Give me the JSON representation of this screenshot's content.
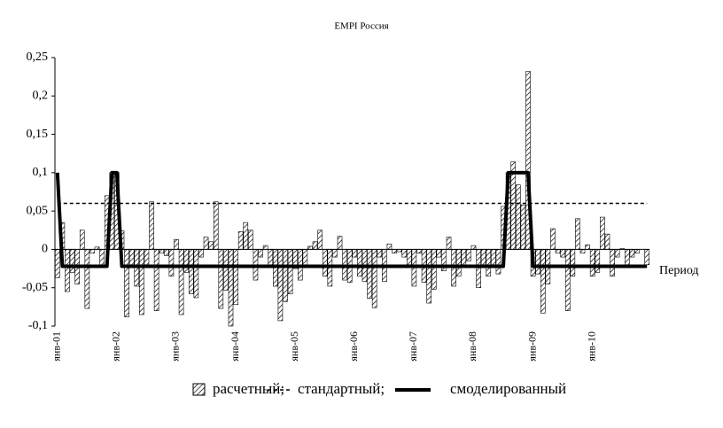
{
  "chart_data": {
    "type": "bar-line",
    "title": "EMPI Россия",
    "x_label": "Период",
    "categories": [
      "янв-01",
      null,
      null,
      null,
      null,
      null,
      null,
      null,
      null,
      null,
      null,
      null,
      "янв-02",
      null,
      null,
      null,
      null,
      null,
      null,
      null,
      null,
      null,
      null,
      null,
      "янв-03",
      null,
      null,
      null,
      null,
      null,
      null,
      null,
      null,
      null,
      null,
      null,
      "янв-04",
      null,
      null,
      null,
      null,
      null,
      null,
      null,
      null,
      null,
      null,
      null,
      "янв-05",
      null,
      null,
      null,
      null,
      null,
      null,
      null,
      null,
      null,
      null,
      null,
      "янв-06",
      null,
      null,
      null,
      null,
      null,
      null,
      null,
      null,
      null,
      null,
      null,
      "янв-07",
      null,
      null,
      null,
      null,
      null,
      null,
      null,
      null,
      null,
      null,
      null,
      "янв-08",
      null,
      null,
      null,
      null,
      null,
      null,
      null,
      null,
      null,
      null,
      null,
      "янв-09",
      null,
      null,
      null,
      null,
      null,
      null,
      null,
      null,
      null,
      null,
      null,
      "янв-10",
      null,
      null,
      null,
      null,
      null,
      null,
      null,
      null,
      null,
      null,
      null
    ],
    "series": [
      {
        "name": "расчетный;",
        "color": "#000000",
        "kind": "bar",
        "values": [
          -0.037,
          0.035,
          -0.055,
          -0.03,
          -0.045,
          0.025,
          -0.077,
          -0.005,
          0.003,
          -0.02,
          0.07,
          0.1,
          0.1,
          0.024,
          -0.088,
          -0.02,
          -0.048,
          -0.085,
          -0.02,
          0.062,
          -0.08,
          -0.005,
          -0.008,
          -0.035,
          0.013,
          -0.085,
          -0.03,
          -0.058,
          -0.063,
          -0.01,
          0.016,
          0.01,
          0.062,
          -0.077,
          -0.053,
          -0.1,
          -0.072,
          0.023,
          0.035,
          0.025,
          -0.04,
          -0.01,
          0.005,
          -0.02,
          -0.048,
          -0.093,
          -0.068,
          -0.058,
          -0.025,
          -0.04,
          -0.02,
          0.004,
          0.01,
          0.025,
          -0.035,
          -0.048,
          -0.01,
          0.017,
          -0.04,
          -0.043,
          -0.01,
          -0.035,
          -0.042,
          -0.064,
          -0.076,
          -0.01,
          -0.042,
          0.007,
          -0.005,
          -0.003,
          -0.01,
          -0.02,
          -0.048,
          -0.005,
          -0.043,
          -0.07,
          -0.052,
          -0.01,
          -0.028,
          0.016,
          -0.048,
          -0.035,
          -0.02,
          -0.015,
          0.005,
          -0.05,
          -0.02,
          -0.035,
          -0.02,
          -0.032,
          0.056,
          0.1,
          0.114,
          0.084,
          0.058,
          0.232,
          -0.035,
          -0.032,
          -0.083,
          -0.045,
          0.027,
          -0.005,
          -0.01,
          -0.08,
          -0.035,
          0.04,
          -0.005,
          0.006,
          -0.035,
          -0.03,
          0.042,
          0.02,
          -0.035,
          -0.01,
          0.001,
          -0.02,
          -0.01,
          -0.005,
          0.0,
          -0.02
        ]
      },
      {
        "name": "стандартный;",
        "color": "#000000",
        "kind": "dashed",
        "values": [
          0.06,
          0.06,
          0.06,
          0.06,
          0.06,
          0.06,
          0.06,
          0.06,
          0.06,
          0.06,
          0.06,
          0.06,
          0.06,
          0.06,
          0.06,
          0.06,
          0.06,
          0.06,
          0.06,
          0.06,
          0.06,
          0.06,
          0.06,
          0.06,
          0.06,
          0.06,
          0.06,
          0.06,
          0.06,
          0.06,
          0.06,
          0.06,
          0.06,
          0.06,
          0.06,
          0.06,
          0.06,
          0.06,
          0.06,
          0.06,
          0.06,
          0.06,
          0.06,
          0.06,
          0.06,
          0.06,
          0.06,
          0.06,
          0.06,
          0.06,
          0.06,
          0.06,
          0.06,
          0.06,
          0.06,
          0.06,
          0.06,
          0.06,
          0.06,
          0.06,
          0.06,
          0.06,
          0.06,
          0.06,
          0.06,
          0.06,
          0.06,
          0.06,
          0.06,
          0.06,
          0.06,
          0.06,
          0.06,
          0.06,
          0.06,
          0.06,
          0.06,
          0.06,
          0.06,
          0.06,
          0.06,
          0.06,
          0.06,
          0.06,
          0.06,
          0.06,
          0.06,
          0.06,
          0.06,
          0.06,
          0.06,
          0.06,
          0.06,
          0.06,
          0.06,
          0.06,
          0.06,
          0.06,
          0.06,
          0.06,
          0.06,
          0.06,
          0.06,
          0.06,
          0.06,
          0.06,
          0.06,
          0.06,
          0.06,
          0.06,
          0.06,
          0.06,
          0.06,
          0.06,
          0.06,
          0.06,
          0.06,
          0.06,
          0.06,
          0.06
        ]
      },
      {
        "name": "смоделированный",
        "color": "#000000",
        "kind": "thick",
        "values": [
          0.1,
          -0.022,
          -0.022,
          -0.022,
          -0.022,
          -0.022,
          -0.022,
          -0.022,
          -0.022,
          -0.022,
          -0.022,
          0.1,
          0.1,
          -0.022,
          -0.022,
          -0.022,
          -0.022,
          -0.022,
          -0.022,
          -0.022,
          -0.022,
          -0.022,
          -0.022,
          -0.022,
          -0.022,
          -0.022,
          -0.022,
          -0.022,
          -0.022,
          -0.022,
          -0.022,
          -0.022,
          -0.022,
          -0.022,
          -0.022,
          -0.022,
          -0.022,
          -0.022,
          -0.022,
          -0.022,
          -0.022,
          -0.022,
          -0.022,
          -0.022,
          -0.022,
          -0.022,
          -0.022,
          -0.022,
          -0.022,
          -0.022,
          -0.022,
          -0.022,
          -0.022,
          -0.022,
          -0.022,
          -0.022,
          -0.022,
          -0.022,
          -0.022,
          -0.022,
          -0.022,
          -0.022,
          -0.022,
          -0.022,
          -0.022,
          -0.022,
          -0.022,
          -0.022,
          -0.022,
          -0.022,
          -0.022,
          -0.022,
          -0.022,
          -0.022,
          -0.022,
          -0.022,
          -0.022,
          -0.022,
          -0.022,
          -0.022,
          -0.022,
          -0.022,
          -0.022,
          -0.022,
          -0.022,
          -0.022,
          -0.022,
          -0.022,
          -0.022,
          -0.022,
          -0.022,
          0.1,
          0.1,
          0.1,
          0.1,
          0.1,
          -0.022,
          -0.022,
          -0.022,
          -0.022,
          -0.022,
          -0.022,
          -0.022,
          -0.022,
          -0.022,
          -0.022,
          -0.022,
          -0.022,
          -0.022,
          -0.022,
          -0.022,
          -0.022,
          -0.022,
          -0.022,
          -0.022,
          -0.022,
          -0.022,
          -0.022,
          -0.022,
          -0.022
        ]
      }
    ],
    "ylim": [
      -0.1,
      0.25
    ],
    "yticks": [
      {
        "value": -0.1,
        "label": "-0,1"
      },
      {
        "value": -0.05,
        "label": "-0,05"
      },
      0,
      {
        "value": 0.05,
        "label": "0,05"
      },
      {
        "value": 0.1,
        "label": "0,1"
      },
      {
        "value": 0.15,
        "label": "0,15"
      },
      {
        "value": 0.2,
        "label": "0,2"
      },
      {
        "value": 0.25,
        "label": "0,25"
      }
    ],
    "grid": false
  }
}
